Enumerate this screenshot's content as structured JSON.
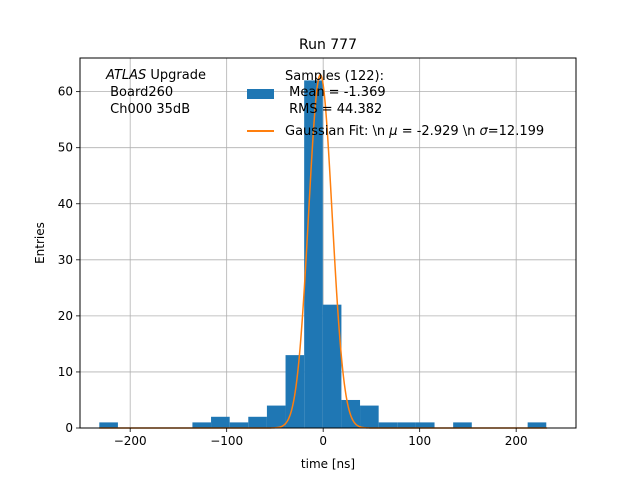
{
  "chart_data": {
    "type": "bar",
    "title": "Run 777",
    "xlabel": "time [ns]",
    "ylabel": "Entries",
    "xlim": [
      -252,
      262
    ],
    "ylim": [
      0,
      66
    ],
    "grid": true,
    "xticks": [
      -200,
      -100,
      0,
      100,
      200
    ],
    "xtick_labels": [
      "−200",
      "−100",
      "0",
      "100",
      "200"
    ],
    "yticks": [
      0,
      10,
      20,
      30,
      40,
      50,
      60
    ],
    "ytick_labels": [
      "0",
      "10",
      "20",
      "30",
      "40",
      "50",
      "60"
    ],
    "annotation": {
      "line1_italic": "ATLAS",
      "line1_rest": " Upgrade",
      "line2": " Board260",
      "line3": " Ch000 35dB"
    },
    "legend": {
      "position": "top-right",
      "entries": [
        {
          "kind": "bar",
          "lines": [
            "Samples (122):",
            " Mean = -1.369",
            " RMS = 44.382"
          ],
          "color": "#1f77b4"
        },
        {
          "kind": "line",
          "label_parts": [
            "Gaussian Fit: \\n ",
            "μ",
            " = -2.929 \\n ",
            "σ",
            "=12.199"
          ],
          "color": "#ff7f0e"
        }
      ]
    },
    "histogram": {
      "bin_width": 19.3,
      "bin_starts": [
        -232,
        -212.7,
        -193.4,
        -174.1,
        -154.8,
        -135.5,
        -116.2,
        -96.9,
        -77.6,
        -58.3,
        -39,
        -19.7,
        -0.4,
        18.9,
        38.2,
        57.5,
        76.8,
        96.1,
        115.4,
        134.7,
        154,
        173.3,
        192.6,
        211.9
      ],
      "values": [
        1,
        0,
        0,
        0,
        0,
        1,
        2,
        1,
        2,
        4,
        13,
        62,
        22,
        5,
        4,
        1,
        1,
        1,
        0,
        1,
        0,
        0,
        0,
        1
      ],
      "color": "#1f77b4"
    },
    "fit": {
      "type": "gaussian",
      "mu": -2.929,
      "sigma": 12.199,
      "amplitude": 63,
      "x_range": [
        -232,
        232
      ],
      "color": "#ff7f0e"
    }
  }
}
